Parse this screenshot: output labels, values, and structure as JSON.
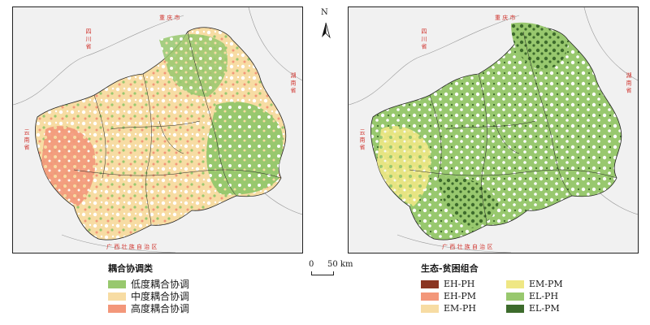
{
  "north_label": "N",
  "scale": {
    "zero": "0",
    "distance": "50 km"
  },
  "regions": {
    "sichuan": "四 川 省",
    "chongqing": "重 庆 市",
    "hunan": "湖 南 省",
    "yunnan": "云 南 省",
    "guangxi": "广 西 壮 族 自 治 区"
  },
  "legend_left": {
    "title": "耦合协调类",
    "items": [
      {
        "label": "低度耦合协调",
        "color": "#98c86e"
      },
      {
        "label": "中度耦合协调",
        "color": "#f7dca3"
      },
      {
        "label": "高度耦合协调",
        "color": "#f3977a"
      }
    ]
  },
  "legend_right": {
    "title": "生态-贫困组合",
    "items": [
      {
        "label": "EH-PH",
        "color": "#8b3522"
      },
      {
        "label": "EM-PM",
        "color": "#efe784"
      },
      {
        "label": "EH-PM",
        "color": "#f3977a"
      },
      {
        "label": "EL-PH",
        "color": "#98c86e"
      },
      {
        "label": "EM-PH",
        "color": "#f7dca3"
      },
      {
        "label": "EL-PM",
        "color": "#3d6b2c"
      }
    ]
  },
  "colors": {
    "background": "#f1f1f1",
    "province_border": "#999999",
    "district_border": "#222222",
    "label_red": "#d0322c"
  }
}
